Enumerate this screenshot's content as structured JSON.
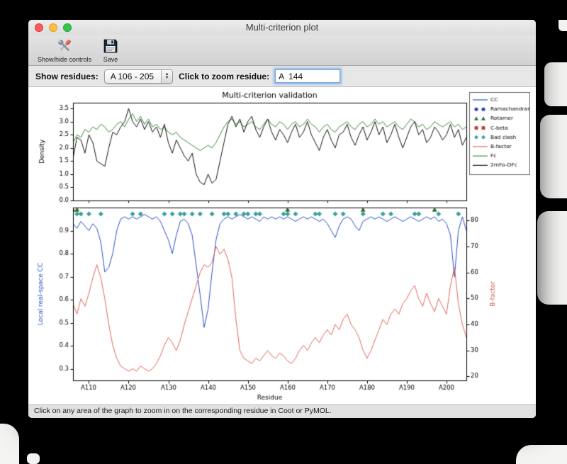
{
  "window": {
    "title": "Multi-criterion plot",
    "toolbar": {
      "buttons": [
        {
          "label": "Show/hide controls",
          "icon": "tools-icon"
        },
        {
          "label": "Save",
          "icon": "save-icon"
        }
      ]
    },
    "controls": {
      "show_residues_label": "Show residues:",
      "residue_range_value": "A 106 - 205",
      "zoom_label": "Click to zoom residue:",
      "zoom_value": "A  144"
    },
    "status_text": "Click on any area of the graph to zoom in on the corresponding residue in Coot or PyMOL."
  },
  "chart_data": [
    {
      "type": "line",
      "title": "Multi-criterion validation",
      "ylabel": "Density",
      "ylim": [
        0,
        3.72
      ],
      "yticks": [
        0.0,
        0.5,
        1.0,
        1.5,
        2.0,
        2.5,
        3.0,
        3.5
      ],
      "x_start": 106,
      "series": [
        {
          "name": "Fc",
          "color": "#3d8b3d",
          "values": [
            2.2,
            2.5,
            2.4,
            2.7,
            2.6,
            2.8,
            2.7,
            2.9,
            2.8,
            2.6,
            2.7,
            2.9,
            3.0,
            2.8,
            3.1,
            3.3,
            3.0,
            3.2,
            2.9,
            3.1,
            2.8,
            2.9,
            2.7,
            2.8,
            2.6,
            2.5,
            2.6,
            2.4,
            2.3,
            2.2,
            2.1,
            2.0,
            1.9,
            2.0,
            2.1,
            2.0,
            2.2,
            2.5,
            2.8,
            3.0,
            3.1,
            2.9,
            3.0,
            2.8,
            2.9,
            3.0,
            2.8,
            2.7,
            2.9,
            3.1,
            2.9,
            2.8,
            3.0,
            2.9,
            2.7,
            2.9,
            3.0,
            2.8,
            2.9,
            3.1,
            2.9,
            2.8,
            2.6,
            2.8,
            2.9,
            2.7,
            2.6,
            2.8,
            2.9,
            3.0,
            2.8,
            2.7,
            2.9,
            3.0,
            2.8,
            2.9,
            3.1,
            2.9,
            3.0,
            2.8,
            2.9,
            3.0,
            2.8,
            2.7,
            2.9,
            3.1,
            3.0,
            2.8,
            2.9,
            2.7,
            2.8,
            3.0,
            2.9,
            2.8,
            2.9,
            3.0,
            2.8,
            2.9,
            2.7,
            2.8
          ]
        },
        {
          "name": "2mFo-DFc",
          "color": "#111111",
          "values": [
            1.6,
            2.4,
            2.3,
            1.8,
            2.5,
            2.2,
            1.5,
            1.4,
            1.3,
            2.0,
            2.6,
            2.5,
            2.8,
            3.0,
            3.5,
            3.0,
            2.8,
            3.1,
            2.7,
            3.0,
            2.6,
            2.8,
            2.4,
            2.9,
            2.2,
            1.8,
            2.3,
            2.0,
            1.7,
            1.5,
            1.8,
            1.0,
            0.7,
            0.6,
            1.0,
            0.65,
            0.8,
            1.5,
            2.2,
            2.9,
            3.2,
            2.8,
            3.1,
            2.6,
            3.0,
            3.2,
            2.7,
            2.4,
            2.8,
            3.1,
            2.6,
            2.3,
            2.7,
            2.5,
            2.2,
            2.6,
            2.9,
            2.4,
            2.6,
            3.0,
            2.5,
            2.2,
            1.9,
            2.4,
            2.7,
            2.3,
            2.0,
            2.5,
            2.6,
            2.9,
            2.4,
            2.1,
            2.5,
            2.8,
            2.3,
            2.6,
            3.0,
            2.5,
            2.8,
            2.2,
            2.5,
            2.9,
            2.4,
            2.0,
            2.4,
            2.8,
            3.0,
            2.5,
            2.7,
            2.2,
            2.4,
            2.8,
            2.6,
            2.3,
            2.5,
            2.9,
            2.4,
            2.7,
            2.1,
            2.4
          ]
        }
      ],
      "legend": {
        "position": "upper right, outside axes",
        "entries": [
          {
            "label": "CC",
            "symbol": "line",
            "color": "#2b4fc8"
          },
          {
            "label": "Ramachandran",
            "symbol": "circle",
            "color": "#2244cc"
          },
          {
            "label": "Rotamer",
            "symbol": "triangle",
            "color": "#2e6b2e"
          },
          {
            "label": "C-beta",
            "symbol": "square",
            "color": "#cc3333"
          },
          {
            "label": "Bad clash",
            "symbol": "diamond",
            "color": "#3aa0a0"
          },
          {
            "label": "B-factor",
            "symbol": "line",
            "color": "#e0685a"
          },
          {
            "label": "Fc",
            "symbol": "line",
            "color": "#3d8b3d"
          },
          {
            "label": "2mFo-DFc",
            "symbol": "line",
            "color": "#111111"
          }
        ]
      }
    },
    {
      "type": "line",
      "xlabel": "Residue",
      "x_start": 106,
      "xtick_residues": [
        110,
        120,
        130,
        140,
        150,
        160,
        170,
        180,
        190,
        200
      ],
      "xtick_labels": [
        "A110",
        "A120",
        "A130",
        "A140",
        "A150",
        "A160",
        "A170",
        "A180",
        "A190",
        "A200"
      ],
      "ylabel_left": "Local real-space CC",
      "ylabel_left_color": "#2b4fc8",
      "ylim_left": [
        0.25,
        1.0
      ],
      "yticks_left": [
        0.3,
        0.4,
        0.5,
        0.6,
        0.7,
        0.8,
        0.9
      ],
      "ylabel_right": "B-factor",
      "ylabel_right_color": "#d5604f",
      "ylim_right": [
        18.5,
        85
      ],
      "yticks_right": [
        20,
        30,
        40,
        50,
        60,
        70,
        80
      ],
      "series": [
        {
          "name": "CC",
          "axis": "left",
          "color": "#2b4fc8",
          "values": [
            0.93,
            0.91,
            0.94,
            0.92,
            0.9,
            0.93,
            0.91,
            0.85,
            0.72,
            0.74,
            0.8,
            0.9,
            0.95,
            0.96,
            0.95,
            0.96,
            0.95,
            0.96,
            0.97,
            0.96,
            0.95,
            0.96,
            0.94,
            0.9,
            0.86,
            0.8,
            0.88,
            0.94,
            0.95,
            0.93,
            0.88,
            0.75,
            0.62,
            0.48,
            0.56,
            0.72,
            0.86,
            0.93,
            0.95,
            0.96,
            0.95,
            0.96,
            0.97,
            0.96,
            0.95,
            0.96,
            0.95,
            0.94,
            0.96,
            0.95,
            0.96,
            0.95,
            0.96,
            0.95,
            0.96,
            0.95,
            0.94,
            0.95,
            0.96,
            0.95,
            0.96,
            0.95,
            0.94,
            0.95,
            0.93,
            0.9,
            0.87,
            0.92,
            0.95,
            0.96,
            0.95,
            0.92,
            0.9,
            0.94,
            0.95,
            0.96,
            0.95,
            0.96,
            0.95,
            0.94,
            0.95,
            0.96,
            0.95,
            0.94,
            0.95,
            0.96,
            0.95,
            0.94,
            0.95,
            0.96,
            0.95,
            0.96,
            0.94,
            0.95,
            0.93,
            0.88,
            0.7,
            0.9,
            0.96,
            0.9
          ]
        },
        {
          "name": "B-factor",
          "axis": "right",
          "color": "#e0685a",
          "values": [
            48,
            44,
            50,
            47,
            52,
            58,
            63,
            58,
            50,
            40,
            32,
            27,
            24,
            23,
            22,
            23,
            22,
            24,
            23,
            22,
            23,
            25,
            28,
            32,
            35,
            33,
            30,
            34,
            40,
            45,
            50,
            55,
            60,
            63,
            62,
            64,
            70,
            67,
            69,
            65,
            58,
            42,
            30,
            27,
            26,
            25,
            27,
            26,
            28,
            30,
            28,
            27,
            29,
            28,
            26,
            25,
            27,
            30,
            32,
            30,
            33,
            35,
            33,
            36,
            38,
            36,
            40,
            38,
            42,
            44,
            40,
            38,
            35,
            30,
            27,
            30,
            34,
            38,
            42,
            40,
            44,
            46,
            44,
            48,
            50,
            53,
            55,
            50,
            47,
            52,
            48,
            45,
            50,
            47,
            44,
            55,
            62,
            48,
            40,
            35
          ]
        }
      ],
      "outlier_markers": [
        {
          "name": "Ramachandran",
          "shape": "circle",
          "color": "#2244cc",
          "residues": []
        },
        {
          "name": "Rotamer",
          "shape": "triangle",
          "color": "#2e6b2e",
          "residues": [
            106,
            107,
            160,
            179,
            197
          ]
        },
        {
          "name": "C-beta",
          "shape": "square",
          "color": "#cc3333",
          "residues": []
        },
        {
          "name": "Bad clash",
          "shape": "diamond",
          "color": "#3aa0a0",
          "residues": [
            107,
            108,
            110,
            113,
            121,
            123,
            129,
            131,
            133,
            134,
            136,
            138,
            141,
            144,
            145,
            147,
            149,
            150,
            152,
            153,
            159,
            160,
            162,
            167,
            168,
            172,
            174,
            179,
            184,
            186,
            192,
            193,
            198,
            203
          ]
        }
      ]
    }
  ]
}
